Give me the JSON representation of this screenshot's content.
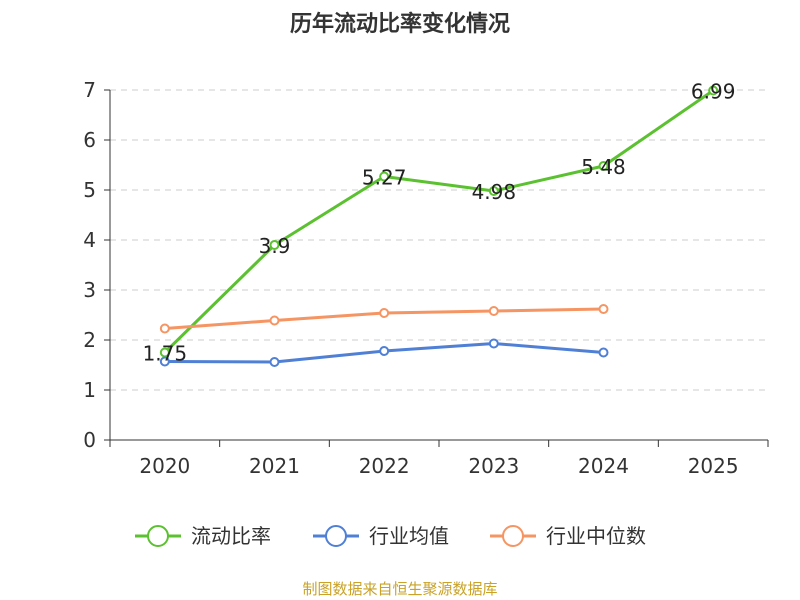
{
  "footer": {
    "source": "制图数据来自恒生聚源数据库",
    "color": "#c9a227"
  },
  "chart_data": {
    "type": "line",
    "title": "历年流动比率变化情况",
    "categories": [
      "2020",
      "2021",
      "2022",
      "2023",
      "2024",
      "2025"
    ],
    "ylim": [
      0,
      7
    ],
    "yticks": [
      0,
      1,
      2,
      3,
      4,
      5,
      6,
      7
    ],
    "grid": true,
    "legend_position": "bottom",
    "series": [
      {
        "name": "流动比率",
        "color": "#5cc130",
        "values": [
          1.75,
          3.9,
          5.27,
          4.98,
          5.48,
          6.99
        ],
        "labels": [
          "1.75",
          "3.9",
          "5.27",
          "4.98",
          "5.48",
          "6.99"
        ]
      },
      {
        "name": "行业均值",
        "color": "#4f80d6",
        "values": [
          1.57,
          1.56,
          1.78,
          1.93,
          1.75,
          null
        ],
        "labels": null
      },
      {
        "name": "行业中位数",
        "color": "#f59563",
        "values": [
          2.23,
          2.39,
          2.54,
          2.58,
          2.62,
          null
        ],
        "labels": null
      }
    ]
  }
}
